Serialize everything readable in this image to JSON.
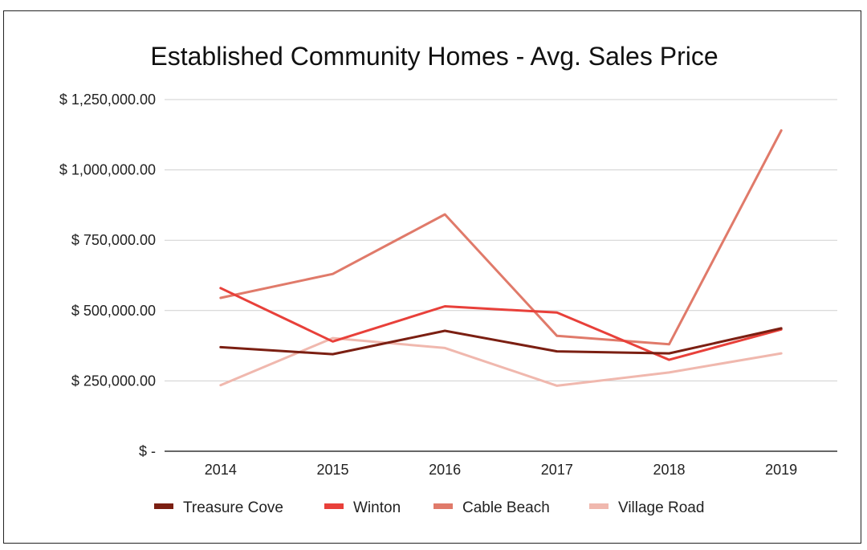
{
  "chart_data": {
    "type": "line",
    "title": "Established Community Homes - Avg. Sales Price",
    "xlabel": "",
    "ylabel": "",
    "categories": [
      "2014",
      "2015",
      "2016",
      "2017",
      "2018",
      "2019"
    ],
    "ylim": [
      0,
      1250000
    ],
    "yticks": [
      {
        "value": 0,
        "label": "$ -"
      },
      {
        "value": 250000,
        "label": "$ 250,000.00"
      },
      {
        "value": 500000,
        "label": "$ 500,000.00"
      },
      {
        "value": 750000,
        "label": "$ 750,000.00"
      },
      {
        "value": 1000000,
        "label": "$ 1,000,000.00"
      },
      {
        "value": 1250000,
        "label": "$ 1,250,000.00"
      }
    ],
    "grid": true,
    "legend_position": "bottom",
    "series": [
      {
        "name": "Treasure Cove",
        "color": "#7b1f12",
        "values": [
          370000,
          345000,
          428000,
          355000,
          348000,
          437000
        ]
      },
      {
        "name": "Winton",
        "color": "#e8403a",
        "values": [
          580000,
          390000,
          515000,
          493000,
          325000,
          433000
        ]
      },
      {
        "name": "Cable Beach",
        "color": "#e07a6a",
        "values": [
          545000,
          630000,
          842000,
          410000,
          380000,
          1140000
        ]
      },
      {
        "name": "Village Road",
        "color": "#f0b8ae",
        "values": [
          235000,
          402000,
          367000,
          233000,
          280000,
          348000
        ]
      }
    ]
  }
}
